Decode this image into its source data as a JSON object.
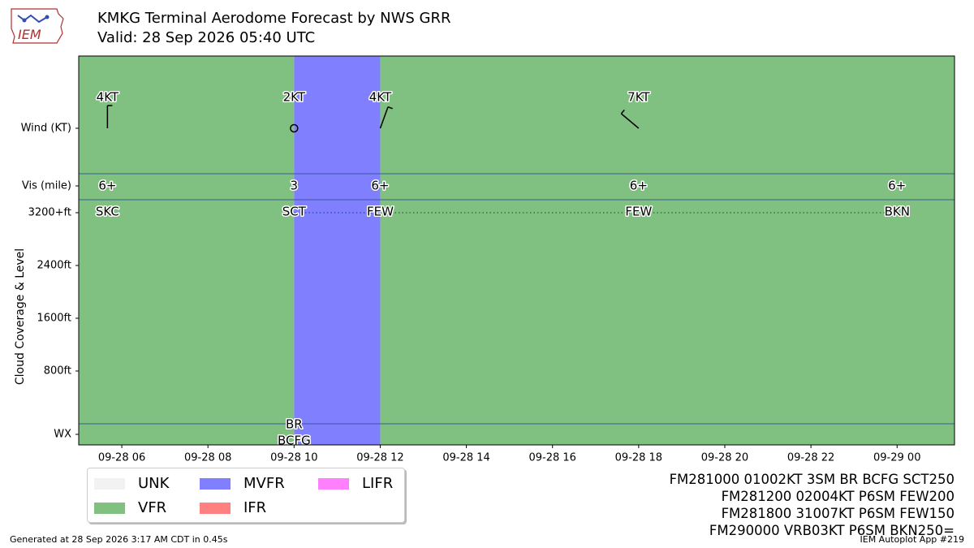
{
  "logo": {
    "text": "IEM"
  },
  "title": {
    "line1": "KMKG Terminal Aerodome Forecast by NWS GRR",
    "line2": "Valid: 28 Sep 2026 05:40 UTC"
  },
  "chart_data": {
    "type": "timeline",
    "x_range": [
      "2026-09-28 05:00",
      "2026-09-29 01:20"
    ],
    "x_ticks": [
      {
        "t": "2026-09-28 06:00",
        "label": "09-28 06"
      },
      {
        "t": "2026-09-28 08:00",
        "label": "09-28 08"
      },
      {
        "t": "2026-09-28 10:00",
        "label": "09-28 10"
      },
      {
        "t": "2026-09-28 12:00",
        "label": "09-28 12"
      },
      {
        "t": "2026-09-28 14:00",
        "label": "09-28 14"
      },
      {
        "t": "2026-09-28 16:00",
        "label": "09-28 16"
      },
      {
        "t": "2026-09-28 18:00",
        "label": "09-28 18"
      },
      {
        "t": "2026-09-28 20:00",
        "label": "09-28 20"
      },
      {
        "t": "2026-09-28 22:00",
        "label": "09-28 22"
      },
      {
        "t": "2026-09-29 00:00",
        "label": "09-29 00"
      }
    ],
    "ylabel": "Cloud Coverage & Level",
    "y_rows": [
      "Wind (KT)",
      "Vis (mile)",
      "3200+ft",
      "2400ft",
      "1600ft",
      "800ft",
      "WX"
    ],
    "flight_category_bands": [
      {
        "start": "2026-09-28 05:00",
        "end": "2026-09-28 10:00",
        "category": "VFR"
      },
      {
        "start": "2026-09-28 10:00",
        "end": "2026-09-28 12:00",
        "category": "MVFR"
      },
      {
        "start": "2026-09-28 12:00",
        "end": "2026-09-29 01:20",
        "category": "VFR"
      }
    ],
    "forecasts": [
      {
        "t": "2026-09-28 05:40",
        "wind_dir": 360,
        "wind_kt": 4,
        "wind_label": "4KT",
        "vis": "6+",
        "cloud": "SKC",
        "cloud_level_ft": 3200,
        "wx": ""
      },
      {
        "t": "2026-09-28 10:00",
        "wind_dir": 10,
        "wind_kt": 2,
        "wind_label": "2KT",
        "vis": "3",
        "cloud": "SCT",
        "cloud_level_ft": 3200,
        "wx": "BR\nBCFG"
      },
      {
        "t": "2026-09-28 12:00",
        "wind_dir": 20,
        "wind_kt": 4,
        "wind_label": "4KT",
        "vis": "6+",
        "cloud": "FEW",
        "cloud_level_ft": 3200,
        "wx": ""
      },
      {
        "t": "2026-09-28 18:00",
        "wind_dir": 310,
        "wind_kt": 7,
        "wind_label": "7KT",
        "vis": "6+",
        "cloud": "FEW",
        "cloud_level_ft": 3200,
        "wx": ""
      },
      {
        "t": "2026-09-29 00:00",
        "wind_dir": null,
        "wind_kt": 3,
        "wind_label": "",
        "vis": "6+",
        "cloud": "BKN",
        "cloud_level_ft": 3200,
        "wx": ""
      }
    ],
    "legend_placement": "bottom-left"
  },
  "legend": {
    "items": [
      {
        "label": "UNK",
        "color": "#f2f2f2"
      },
      {
        "label": "MVFR",
        "color": "#8080ff"
      },
      {
        "label": "LIFR",
        "color": "#ff80ff"
      },
      {
        "label": "VFR",
        "color": "#80c080"
      },
      {
        "label": "IFR",
        "color": "#ff8080"
      }
    ]
  },
  "taf_text": [
    "FM281000 01002KT 3SM BR BCFG SCT250",
    "FM281200 02004KT P6SM FEW200",
    "FM281800 31007KT P6SM FEW150",
    "FM290000 VRB03KT P6SM BKN250="
  ],
  "footer": {
    "left": "Generated at 28 Sep 2026 3:17 AM CDT in 0.45s",
    "right": "IEM Autoplot App #219"
  }
}
